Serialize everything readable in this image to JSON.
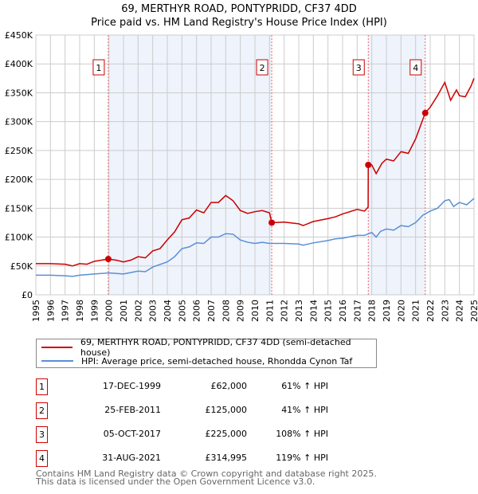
{
  "title": "69, MERTHYR ROAD, PONTYPRIDD, CF37 4DD",
  "subtitle": "Price paid vs. HM Land Registry's House Price Index (HPI)",
  "chart_data": {
    "type": "line",
    "title": "69, MERTHYR ROAD, PONTYPRIDD, CF37 4DD",
    "ylim": [
      0,
      450000
    ],
    "xlim": [
      1995,
      2025
    ],
    "yticks": [
      {
        "v": 0,
        "label": "£0"
      },
      {
        "v": 50000,
        "label": "£50K"
      },
      {
        "v": 100000,
        "label": "£100K"
      },
      {
        "v": 150000,
        "label": "£150K"
      },
      {
        "v": 200000,
        "label": "£200K"
      },
      {
        "v": 250000,
        "label": "£250K"
      },
      {
        "v": 300000,
        "label": "£300K"
      },
      {
        "v": 350000,
        "label": "£350K"
      },
      {
        "v": 400000,
        "label": "£400K"
      },
      {
        "v": 450000,
        "label": "£450K"
      }
    ],
    "xticks": [
      "1995",
      "1996",
      "1997",
      "1998",
      "1999",
      "2000",
      "2001",
      "2002",
      "2003",
      "2004",
      "2005",
      "2006",
      "2007",
      "2008",
      "2009",
      "2010",
      "2011",
      "2012",
      "2013",
      "2014",
      "2015",
      "2016",
      "2017",
      "2018",
      "2019",
      "2020",
      "2021",
      "2022",
      "2023",
      "2024",
      "2025"
    ],
    "grid": true,
    "series": [
      {
        "name": "69, MERTHYR ROAD, PONTYPRIDD, CF37 4DD (semi-detached house)",
        "color": "#cc0000",
        "points": [
          [
            1995,
            54
          ],
          [
            1996,
            54
          ],
          [
            1997,
            53
          ],
          [
            1997.5,
            50
          ],
          [
            1998,
            54
          ],
          [
            1998.5,
            53
          ],
          [
            1999,
            58
          ],
          [
            1999.96,
            62
          ],
          [
            2000.5,
            60
          ],
          [
            2001,
            57
          ],
          [
            2001.5,
            60
          ],
          [
            2002,
            66
          ],
          [
            2002.5,
            64
          ],
          [
            2003,
            76
          ],
          [
            2003.5,
            80
          ],
          [
            2004,
            95
          ],
          [
            2004.5,
            109
          ],
          [
            2005,
            130
          ],
          [
            2005.5,
            133
          ],
          [
            2006,
            147
          ],
          [
            2006.5,
            142
          ],
          [
            2007,
            160
          ],
          [
            2007.5,
            160
          ],
          [
            2008,
            172
          ],
          [
            2008.5,
            163
          ],
          [
            2009,
            146
          ],
          [
            2009.5,
            141
          ],
          [
            2010,
            144
          ],
          [
            2010.5,
            146
          ],
          [
            2011.0,
            142
          ],
          [
            2011.15,
            125
          ],
          [
            2012,
            126
          ],
          [
            2013,
            123
          ],
          [
            2013.3,
            120
          ],
          [
            2014,
            127
          ],
          [
            2015,
            132
          ],
          [
            2015.5,
            135
          ],
          [
            2016,
            140
          ],
          [
            2017,
            148
          ],
          [
            2017.5,
            145
          ],
          [
            2017.75,
            152
          ],
          [
            2017.76,
            225
          ],
          [
            2018,
            225
          ],
          [
            2018.3,
            210
          ],
          [
            2018.7,
            228
          ],
          [
            2019,
            235
          ],
          [
            2019.5,
            232
          ],
          [
            2020,
            248
          ],
          [
            2020.5,
            245
          ],
          [
            2021,
            270
          ],
          [
            2021.66,
            315
          ],
          [
            2022,
            325
          ],
          [
            2022.5,
            345
          ],
          [
            2023,
            368
          ],
          [
            2023.4,
            337
          ],
          [
            2023.8,
            355
          ],
          [
            2024,
            345
          ],
          [
            2024.4,
            343
          ],
          [
            2024.8,
            362
          ],
          [
            2025,
            375
          ]
        ]
      },
      {
        "name": "HPI: Average price, semi-detached house, Rhondda Cynon Taf",
        "color": "#5b8fd6",
        "points": [
          [
            1995,
            34
          ],
          [
            1996,
            34
          ],
          [
            1997,
            33
          ],
          [
            1997.5,
            32
          ],
          [
            1998,
            34
          ],
          [
            1999,
            36
          ],
          [
            2000,
            38
          ],
          [
            2001,
            36
          ],
          [
            2002,
            41
          ],
          [
            2002.5,
            40
          ],
          [
            2003,
            48
          ],
          [
            2004,
            57
          ],
          [
            2004.5,
            66
          ],
          [
            2005,
            80
          ],
          [
            2005.5,
            83
          ],
          [
            2006,
            90
          ],
          [
            2006.5,
            89
          ],
          [
            2007,
            100
          ],
          [
            2007.5,
            100
          ],
          [
            2008,
            106
          ],
          [
            2008.5,
            105
          ],
          [
            2009,
            95
          ],
          [
            2009.5,
            91
          ],
          [
            2010,
            89
          ],
          [
            2010.5,
            91
          ],
          [
            2011,
            89
          ],
          [
            2012,
            89
          ],
          [
            2013,
            88
          ],
          [
            2013.3,
            86
          ],
          [
            2014,
            90
          ],
          [
            2015,
            94
          ],
          [
            2015.5,
            97
          ],
          [
            2016,
            98
          ],
          [
            2017,
            103
          ],
          [
            2017.5,
            103
          ],
          [
            2018,
            108
          ],
          [
            2018.3,
            100
          ],
          [
            2018.6,
            110
          ],
          [
            2019,
            114
          ],
          [
            2019.5,
            112
          ],
          [
            2020,
            120
          ],
          [
            2020.5,
            118
          ],
          [
            2021,
            125
          ],
          [
            2021.5,
            138
          ],
          [
            2022,
            145
          ],
          [
            2022.5,
            150
          ],
          [
            2023,
            163
          ],
          [
            2023.3,
            165
          ],
          [
            2023.6,
            153
          ],
          [
            2024,
            160
          ],
          [
            2024.5,
            156
          ],
          [
            2025,
            167
          ]
        ]
      }
    ],
    "point_units": "thousands GBP",
    "sales": [
      {
        "label": "1",
        "x": 1999.96,
        "y": 62000
      },
      {
        "label": "2",
        "x": 2011.15,
        "y": 125000
      },
      {
        "label": "3",
        "x": 2017.76,
        "y": 225000
      },
      {
        "label": "4",
        "x": 2021.66,
        "y": 314995
      }
    ],
    "shaded": [
      [
        1999.96,
        2011.15
      ],
      [
        2017.76,
        2021.66
      ]
    ]
  },
  "legend": {
    "property": "69, MERTHYR ROAD, PONTYPRIDD, CF37 4DD (semi-detached house)",
    "hpi": "HPI: Average price, semi-detached house, Rhondda Cynon Taf"
  },
  "transactions": [
    {
      "n": "1",
      "date": "17-DEC-1999",
      "price": "£62,000",
      "hpi": "61% ↑ HPI"
    },
    {
      "n": "2",
      "date": "25-FEB-2011",
      "price": "£125,000",
      "hpi": "41% ↑ HPI"
    },
    {
      "n": "3",
      "date": "05-OCT-2017",
      "price": "£225,000",
      "hpi": "108% ↑ HPI"
    },
    {
      "n": "4",
      "date": "31-AUG-2021",
      "price": "£314,995",
      "hpi": "119% ↑ HPI"
    }
  ],
  "footer": [
    "Contains HM Land Registry data © Crown copyright and database right 2025.",
    "This data is licensed under the Open Government Licence v3.0."
  ]
}
